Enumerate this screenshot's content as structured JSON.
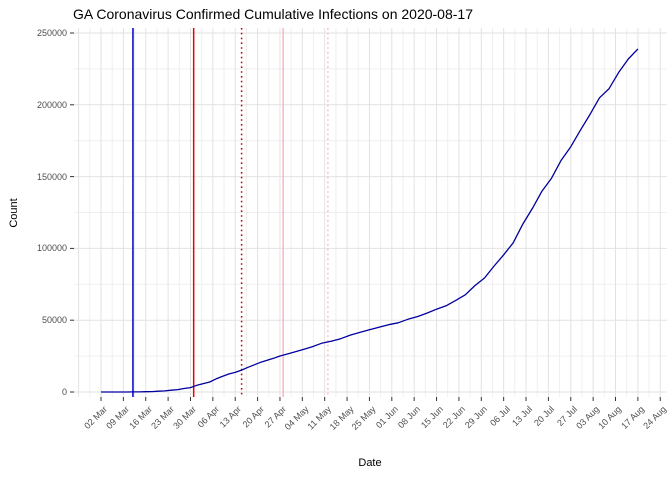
{
  "title": "GA Coronavirus Confirmed Cumulative Infections on 2020-08-17",
  "chart_data": {
    "type": "line",
    "title": "GA Coronavirus Confirmed Cumulative Infections on 2020-08-17",
    "xlabel": "Date",
    "ylabel": "Count",
    "grid": "major and minor, light gray on white",
    "legend": "none",
    "x_start_date": "2020-03-02",
    "x_tick_labels": [
      "02 Mar",
      "09 Mar",
      "16 Mar",
      "23 Mar",
      "30 Mar",
      "06 Apr",
      "13 Apr",
      "20 Apr",
      "27 Apr",
      "04 May",
      "11 May",
      "18 May",
      "25 May",
      "01 Jun",
      "08 Jun",
      "15 Jun",
      "22 Jun",
      "29 Jun",
      "06 Jul",
      "13 Jul",
      "20 Jul",
      "27 Jul",
      "03 Aug",
      "10 Aug",
      "17 Aug",
      "24 Aug"
    ],
    "y_tick_labels": [
      "0",
      "50000",
      "100000",
      "150000",
      "200000",
      "250000"
    ],
    "y_ticks": [
      0,
      50000,
      100000,
      150000,
      200000,
      250000
    ],
    "ylim": [
      0,
      250000
    ],
    "y_minor_step": 25000,
    "series": [
      {
        "name": "cumulative-confirmed-infections",
        "color": "#00009E",
        "points": [
          [
            "2020-03-02",
            2
          ],
          [
            "2020-03-05",
            6
          ],
          [
            "2020-03-08",
            17
          ],
          [
            "2020-03-10",
            22
          ],
          [
            "2020-03-12",
            42
          ],
          [
            "2020-03-14",
            99
          ],
          [
            "2020-03-16",
            180
          ],
          [
            "2020-03-18",
            287
          ],
          [
            "2020-03-20",
            555
          ],
          [
            "2020-03-22",
            772
          ],
          [
            "2020-03-24",
            1247
          ],
          [
            "2020-03-26",
            1643
          ],
          [
            "2020-03-28",
            2446
          ],
          [
            "2020-03-30",
            3032
          ],
          [
            "2020-04-01",
            4638
          ],
          [
            "2020-04-03",
            5831
          ],
          [
            "2020-04-05",
            6983
          ],
          [
            "2020-04-07",
            9156
          ],
          [
            "2020-04-09",
            10885
          ],
          [
            "2020-04-11",
            12550
          ],
          [
            "2020-04-13",
            13621
          ],
          [
            "2020-04-15",
            15260
          ],
          [
            "2020-04-17",
            17194
          ],
          [
            "2020-04-19",
            18947
          ],
          [
            "2020-04-21",
            20740
          ],
          [
            "2020-04-23",
            22147
          ],
          [
            "2020-04-25",
            23481
          ],
          [
            "2020-04-27",
            25065
          ],
          [
            "2020-04-29",
            26264
          ],
          [
            "2020-05-01",
            27492
          ],
          [
            "2020-05-04",
            29368
          ],
          [
            "2020-05-07",
            31439
          ],
          [
            "2020-05-10",
            33927
          ],
          [
            "2020-05-13",
            35332
          ],
          [
            "2020-05-16",
            37147
          ],
          [
            "2020-05-19",
            39647
          ],
          [
            "2020-05-22",
            41482
          ],
          [
            "2020-05-25",
            43344
          ],
          [
            "2020-05-28",
            45092
          ],
          [
            "2020-05-31",
            46851
          ],
          [
            "2020-06-03",
            48207
          ],
          [
            "2020-06-06",
            50621
          ],
          [
            "2020-06-09",
            52497
          ],
          [
            "2020-06-12",
            54973
          ],
          [
            "2020-06-15",
            57681
          ],
          [
            "2020-06-18",
            60030
          ],
          [
            "2020-06-21",
            63809
          ],
          [
            "2020-06-24",
            67678
          ],
          [
            "2020-06-27",
            74106
          ],
          [
            "2020-06-30",
            79417
          ],
          [
            "2020-07-03",
            87709
          ],
          [
            "2020-07-06",
            95516
          ],
          [
            "2020-07-09",
            103890
          ],
          [
            "2020-07-12",
            116926
          ],
          [
            "2020-07-15",
            127834
          ],
          [
            "2020-07-18",
            139869
          ],
          [
            "2020-07-21",
            148988
          ],
          [
            "2020-07-24",
            161401
          ],
          [
            "2020-07-27",
            170843
          ],
          [
            "2020-07-30",
            182286
          ],
          [
            "2020-08-02",
            193177
          ],
          [
            "2020-08-05",
            204882
          ],
          [
            "2020-08-08",
            211302
          ],
          [
            "2020-08-11",
            222588
          ],
          [
            "2020-08-14",
            231895
          ],
          [
            "2020-08-17",
            238861
          ]
        ]
      }
    ],
    "vlines": [
      {
        "name": "navy-solid-vline",
        "date": "2020-03-12",
        "color": "#0000CC",
        "style": "solid"
      },
      {
        "name": "red-solid-vline",
        "date": "2020-03-31",
        "color": "#EE0000",
        "style": "solid"
      },
      {
        "name": "red-dotted-vline",
        "date": "2020-04-15",
        "color": "#C40000",
        "style": "dotted"
      },
      {
        "name": "pink-solid-vline",
        "date": "2020-04-28",
        "color": "#FFB3C1",
        "style": "solid"
      },
      {
        "name": "pink-dotted-vline",
        "date": "2020-05-12",
        "color": "#FFB3C1",
        "style": "dotted"
      }
    ],
    "colors": {
      "background": "#FFFFFF",
      "grid_major": "#E2E2E2",
      "grid_minor": "#EFEFEF",
      "tick": "#333333",
      "tick_label": "#4D4D4D",
      "line": "#00009E"
    }
  }
}
